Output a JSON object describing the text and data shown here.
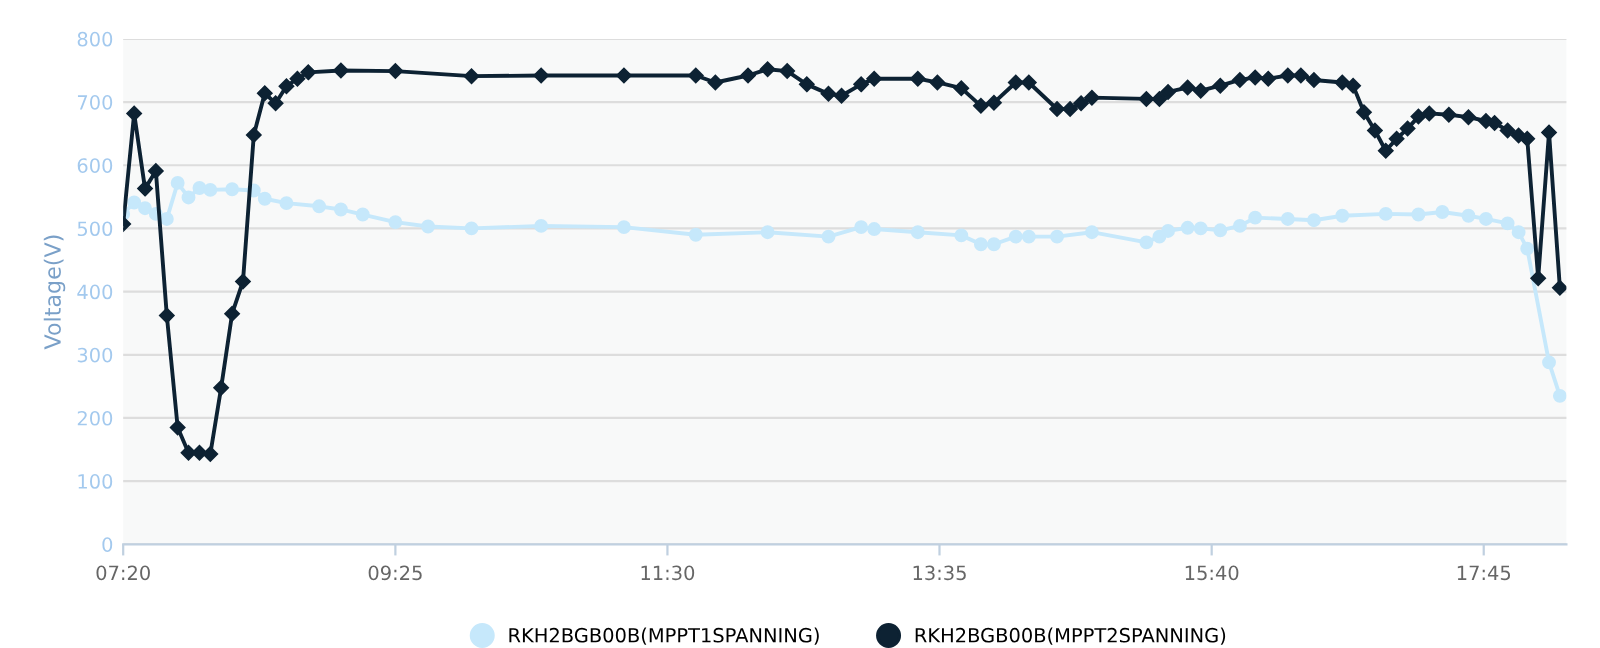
{
  "chart_data": {
    "type": "line",
    "ylabel": "Voltage(V)",
    "xlim": [
      7.333,
      18.383
    ],
    "xticks": [
      {
        "value": 7.333,
        "label": "07:20"
      },
      {
        "value": 9.417,
        "label": "09:25"
      },
      {
        "value": 11.5,
        "label": "11:30"
      },
      {
        "value": 13.583,
        "label": "13:35"
      },
      {
        "value": 15.667,
        "label": "15:40"
      },
      {
        "value": 17.75,
        "label": "17:45"
      }
    ],
    "ylim": [
      0,
      800
    ],
    "yticks": [
      0,
      100,
      200,
      300,
      400,
      500,
      600,
      700,
      800
    ],
    "grid": "y",
    "legend": "bottom",
    "series": [
      {
        "name": "RKH2BGB00B(MPPT1SPANNING)",
        "color": "#c6e8fb",
        "marker": "circle",
        "x": [
          7.333,
          7.417,
          7.5,
          7.583,
          7.667,
          7.75,
          7.833,
          7.917,
          8.0,
          8.167,
          8.333,
          8.417,
          8.583,
          8.833,
          9.0,
          9.167,
          9.417,
          9.667,
          10.0,
          10.533,
          11.167,
          11.717,
          12.267,
          12.733,
          12.983,
          13.083,
          13.417,
          13.75,
          13.9,
          14.0,
          14.167,
          14.267,
          14.483,
          14.75,
          15.167,
          15.267,
          15.333,
          15.483,
          15.583,
          15.733,
          15.883,
          16.0,
          16.25,
          16.45,
          16.667,
          17.0,
          17.25,
          17.433,
          17.633,
          17.767,
          17.933,
          18.017,
          18.083,
          18.25,
          18.333
        ],
        "values": [
          523,
          541,
          532,
          523,
          515,
          572,
          549,
          564,
          561,
          562,
          560,
          547,
          540,
          535,
          530,
          522,
          510,
          503,
          500,
          504,
          502,
          490,
          494,
          487,
          502,
          499,
          494,
          489,
          475,
          475,
          487,
          487,
          487,
          494,
          478,
          487,
          496,
          501,
          500,
          497,
          504,
          517,
          515,
          513,
          520,
          523,
          522,
          526,
          520,
          515,
          508,
          494,
          468,
          288,
          235
        ]
      },
      {
        "name": "RKH2BGB00B(MPPT2SPANNING)",
        "color": "#0d2233",
        "marker": "diamond",
        "x": [
          7.333,
          7.417,
          7.5,
          7.583,
          7.667,
          7.75,
          7.833,
          7.917,
          8.0,
          8.083,
          8.167,
          8.25,
          8.333,
          8.417,
          8.5,
          8.583,
          8.667,
          8.75,
          9.0,
          9.417,
          10.0,
          10.533,
          11.167,
          11.717,
          11.867,
          12.117,
          12.267,
          12.417,
          12.567,
          12.733,
          12.833,
          12.983,
          13.083,
          13.417,
          13.567,
          13.75,
          13.9,
          14.0,
          14.167,
          14.267,
          14.483,
          14.583,
          14.667,
          14.75,
          15.167,
          15.267,
          15.333,
          15.483,
          15.583,
          15.733,
          15.883,
          16.0,
          16.1,
          16.25,
          16.35,
          16.45,
          16.667,
          16.75,
          16.833,
          16.917,
          17.0,
          17.083,
          17.167,
          17.25,
          17.333,
          17.483,
          17.633,
          17.767,
          17.833,
          17.933,
          18.017,
          18.083,
          18.167,
          18.25,
          18.333
        ],
        "values": [
          507,
          682,
          563,
          591,
          362,
          185,
          145,
          145,
          143,
          248,
          365,
          416,
          648,
          714,
          698,
          725,
          737,
          747,
          750,
          749,
          741,
          742,
          742,
          742,
          731,
          742,
          752,
          749,
          728,
          713,
          710,
          728,
          737,
          737,
          731,
          722,
          694,
          699,
          731,
          731,
          689,
          689,
          698,
          707,
          705,
          705,
          716,
          723,
          718,
          726,
          735,
          739,
          737,
          742,
          742,
          735,
          731,
          726,
          684,
          655,
          623,
          642,
          658,
          677,
          682,
          680,
          676,
          670,
          667,
          655,
          647,
          642,
          421,
          652,
          406
        ]
      }
    ]
  }
}
